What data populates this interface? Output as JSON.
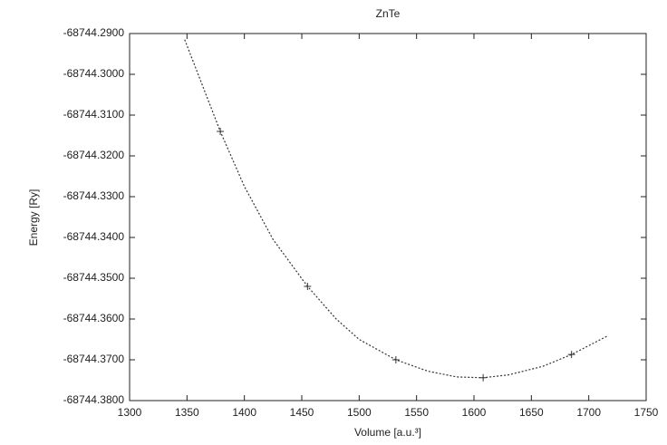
{
  "chart_data": {
    "type": "scatter",
    "title": "ZnTe",
    "xlabel": "Volume [a.u.³]",
    "ylabel": "Energy [Ry]",
    "xlim": [
      1300,
      1750
    ],
    "xticks": [
      1300,
      1350,
      1400,
      1450,
      1500,
      1550,
      1600,
      1650,
      1700,
      1750
    ],
    "ylim": [
      -68744.38,
      -68744.29
    ],
    "yticks": [
      {
        "value": -68744.29,
        "label": "-68744.2900"
      },
      {
        "value": -68744.3,
        "label": "-68744.3000"
      },
      {
        "value": -68744.31,
        "label": "-68744.3100"
      },
      {
        "value": -68744.32,
        "label": "-68744.3200"
      },
      {
        "value": -68744.33,
        "label": "-68744.3300"
      },
      {
        "value": -68744.34,
        "label": "-68744.3400"
      },
      {
        "value": -68744.35,
        "label": "-68744.3500"
      },
      {
        "value": -68744.36,
        "label": "-68744.3600"
      },
      {
        "value": -68744.37,
        "label": "-68744.3700"
      },
      {
        "value": -68744.38,
        "label": "-68744.3800"
      }
    ],
    "series": [
      {
        "mode": "markers",
        "color": "#333333",
        "x": [
          1379,
          1455,
          1532,
          1608,
          1685
        ],
        "values": [
          -68744.314,
          -68744.352,
          -68744.37,
          -68744.3744,
          -68744.3687
        ]
      },
      {
        "mode": "dotted-line",
        "color": "#333333",
        "x": [
          1348,
          1379,
          1400,
          1425,
          1455,
          1480,
          1500,
          1532,
          1560,
          1585,
          1608,
          1630,
          1660,
          1685,
          1716
        ],
        "values": [
          -68744.2915,
          -68744.314,
          -68744.3275,
          -68744.3405,
          -68744.352,
          -68744.36,
          -68744.365,
          -68744.37,
          -68744.3728,
          -68744.3742,
          -68744.3744,
          -68744.3737,
          -68744.3716,
          -68744.3687,
          -68744.3642
        ]
      }
    ]
  }
}
